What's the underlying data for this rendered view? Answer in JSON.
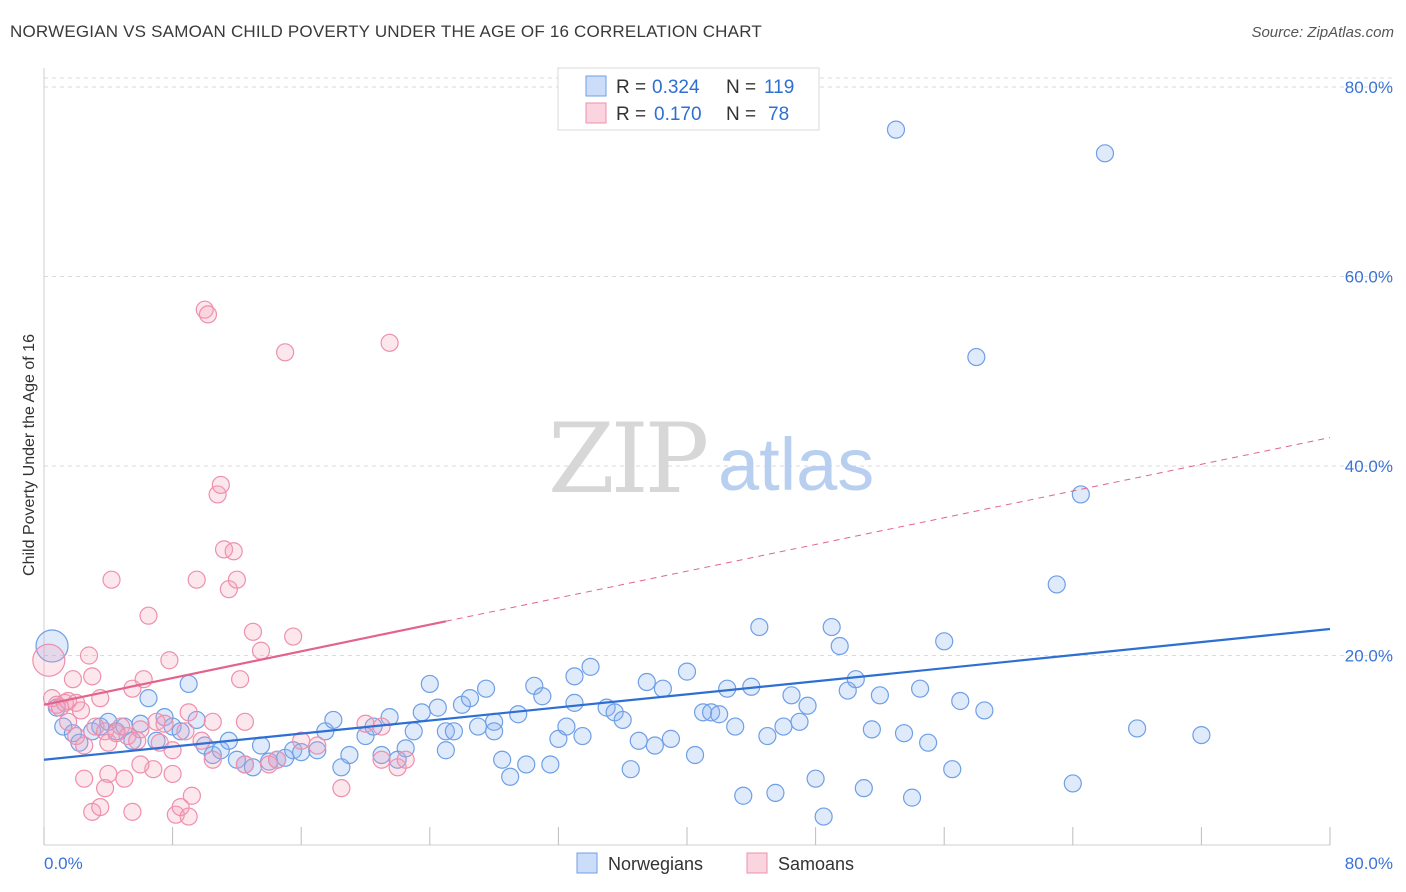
{
  "title": "NORWEGIAN VS SAMOAN CHILD POVERTY UNDER THE AGE OF 16 CORRELATION CHART",
  "source": "Source: ZipAtlas.com",
  "watermark": {
    "zip": "ZIP",
    "atlas": "atlas"
  },
  "colors": {
    "blue": "#6f9fe6",
    "blue_fill": "rgba(140,180,240,0.28)",
    "blue_line": "#2d6fd2",
    "pink": "#ef8fae",
    "pink_fill": "rgba(245,160,185,0.25)",
    "pink_line": "#e2648c",
    "grid": "#d9d9e0",
    "tick_text": "#3a73d6"
  },
  "chart_data": {
    "type": "scatter",
    "title": "NORWEGIAN VS SAMOAN CHILD POVERTY UNDER THE AGE OF 16 CORRELATION CHART",
    "xlabel": "",
    "ylabel": "Child Poverty Under the Age of 16",
    "xlim": [
      0,
      80
    ],
    "ylim": [
      0,
      80
    ],
    "x_tick_labels": [
      "0.0%",
      "80.0%"
    ],
    "y_ticks": [
      20,
      40,
      60,
      80
    ],
    "y_tick_labels": [
      "20.0%",
      "40.0%",
      "60.0%",
      "80.0%"
    ],
    "grid": true,
    "legend": {
      "placement": "top-center",
      "entries": [
        {
          "series": "Norwegians",
          "r_label": "R =",
          "r_value": "0.324",
          "n_label": "N =",
          "n_value": "119"
        },
        {
          "series": "Samoans",
          "r_label": "R =",
          "r_value": "0.170",
          "n_label": "N =",
          "n_value": "78"
        }
      ]
    },
    "series": [
      {
        "name": "Norwegians",
        "trend": {
          "x0": 0,
          "y0": 9.0,
          "x1": 80,
          "y1": 22.8,
          "dashed_from": null
        },
        "points": [
          [
            0.5,
            21.0
          ],
          [
            0.8,
            14.5
          ],
          [
            1.2,
            12.5
          ],
          [
            1.8,
            11.8
          ],
          [
            2.2,
            10.8
          ],
          [
            3.0,
            12.0
          ],
          [
            3.5,
            12.5
          ],
          [
            4.0,
            13.0
          ],
          [
            4.5,
            12.0
          ],
          [
            5.0,
            12.5
          ],
          [
            5.5,
            11.0
          ],
          [
            6.0,
            12.8
          ],
          [
            6.5,
            15.5
          ],
          [
            7.0,
            11.0
          ],
          [
            7.5,
            13.5
          ],
          [
            8.0,
            12.5
          ],
          [
            8.5,
            12.0
          ],
          [
            9.0,
            17.0
          ],
          [
            9.5,
            13.2
          ],
          [
            10.0,
            10.5
          ],
          [
            10.5,
            9.5
          ],
          [
            11.0,
            10.0
          ],
          [
            11.5,
            11.0
          ],
          [
            12.0,
            9.0
          ],
          [
            12.5,
            8.5
          ],
          [
            13.0,
            8.2
          ],
          [
            13.5,
            10.5
          ],
          [
            14.0,
            8.8
          ],
          [
            14.5,
            9.0
          ],
          [
            15.0,
            9.2
          ],
          [
            15.5,
            10.0
          ],
          [
            16.0,
            9.8
          ],
          [
            17.0,
            10.0
          ],
          [
            17.5,
            12.0
          ],
          [
            18.0,
            13.2
          ],
          [
            18.5,
            8.2
          ],
          [
            19.0,
            9.5
          ],
          [
            20.0,
            11.5
          ],
          [
            20.5,
            12.5
          ],
          [
            21.0,
            9.5
          ],
          [
            21.5,
            13.5
          ],
          [
            22.0,
            9.0
          ],
          [
            22.5,
            10.2
          ],
          [
            23.0,
            12.0
          ],
          [
            23.5,
            14.0
          ],
          [
            24.0,
            17.0
          ],
          [
            24.5,
            14.5
          ],
          [
            25.0,
            12.0
          ],
          [
            25.5,
            12.0
          ],
          [
            26.0,
            14.8
          ],
          [
            26.5,
            15.5
          ],
          [
            27.0,
            12.5
          ],
          [
            27.5,
            16.5
          ],
          [
            28.0,
            13.0
          ],
          [
            28.5,
            9.0
          ],
          [
            29.0,
            7.2
          ],
          [
            29.5,
            13.8
          ],
          [
            30.0,
            8.5
          ],
          [
            30.5,
            16.8
          ],
          [
            31.0,
            15.7
          ],
          [
            31.5,
            8.5
          ],
          [
            32.0,
            11.2
          ],
          [
            32.5,
            12.5
          ],
          [
            33.0,
            17.8
          ],
          [
            33.5,
            11.5
          ],
          [
            34.0,
            18.8
          ],
          [
            35.0,
            14.5
          ],
          [
            35.5,
            14.0
          ],
          [
            36.0,
            13.2
          ],
          [
            36.5,
            8.0
          ],
          [
            37.0,
            11.0
          ],
          [
            37.5,
            17.2
          ],
          [
            38.0,
            10.5
          ],
          [
            38.5,
            16.5
          ],
          [
            39.0,
            11.2
          ],
          [
            40.0,
            18.3
          ],
          [
            40.5,
            9.5
          ],
          [
            41.0,
            14.0
          ],
          [
            41.5,
            14.0
          ],
          [
            42.0,
            13.8
          ],
          [
            42.5,
            16.5
          ],
          [
            43.0,
            12.5
          ],
          [
            43.5,
            5.2
          ],
          [
            44.0,
            16.7
          ],
          [
            44.5,
            23.0
          ],
          [
            45.0,
            11.5
          ],
          [
            45.5,
            5.5
          ],
          [
            46.0,
            12.5
          ],
          [
            46.5,
            15.8
          ],
          [
            47.0,
            13.0
          ],
          [
            47.5,
            14.7
          ],
          [
            48.0,
            7.0
          ],
          [
            48.5,
            3.0
          ],
          [
            49.0,
            23.0
          ],
          [
            49.5,
            21.0
          ],
          [
            50.0,
            16.3
          ],
          [
            50.5,
            17.5
          ],
          [
            51.0,
            6.0
          ],
          [
            51.5,
            12.2
          ],
          [
            52.0,
            15.8
          ],
          [
            53.0,
            75.5
          ],
          [
            53.5,
            11.8
          ],
          [
            54.0,
            5.0
          ],
          [
            54.5,
            16.5
          ],
          [
            55.0,
            10.8
          ],
          [
            56.0,
            21.5
          ],
          [
            56.5,
            8.0
          ],
          [
            57.0,
            15.2
          ],
          [
            58.0,
            51.5
          ],
          [
            58.5,
            14.2
          ],
          [
            63.0,
            27.5
          ],
          [
            64.0,
            6.5
          ],
          [
            64.5,
            37.0
          ],
          [
            66.0,
            73.0
          ],
          [
            68.0,
            12.3
          ],
          [
            72.0,
            11.6
          ],
          [
            25.0,
            10.0
          ],
          [
            28.0,
            12.0
          ],
          [
            33.0,
            15.0
          ]
        ]
      },
      {
        "name": "Samoans",
        "trend": {
          "x0": 0,
          "y0": 14.8,
          "x1": 80,
          "y1": 43.0,
          "dashed_from": 25
        },
        "points": [
          [
            0.3,
            19.5
          ],
          [
            0.5,
            15.5
          ],
          [
            0.8,
            14.8
          ],
          [
            1.0,
            14.5
          ],
          [
            1.3,
            15.0
          ],
          [
            1.5,
            15.2
          ],
          [
            1.8,
            17.5
          ],
          [
            2.0,
            15.0
          ],
          [
            2.3,
            14.2
          ],
          [
            2.5,
            7.0
          ],
          [
            2.8,
            20.0
          ],
          [
            3.0,
            17.8
          ],
          [
            3.2,
            12.5
          ],
          [
            3.5,
            15.5
          ],
          [
            3.8,
            12.0
          ],
          [
            4.0,
            10.8
          ],
          [
            4.2,
            28.0
          ],
          [
            4.5,
            11.8
          ],
          [
            4.8,
            12.5
          ],
          [
            5.0,
            7.0
          ],
          [
            5.2,
            11.5
          ],
          [
            5.5,
            16.5
          ],
          [
            5.8,
            11.0
          ],
          [
            6.0,
            12.2
          ],
          [
            6.2,
            17.5
          ],
          [
            6.5,
            24.2
          ],
          [
            6.8,
            8.0
          ],
          [
            7.0,
            13.0
          ],
          [
            7.2,
            10.8
          ],
          [
            7.5,
            12.8
          ],
          [
            7.8,
            19.5
          ],
          [
            8.0,
            7.5
          ],
          [
            8.2,
            3.2
          ],
          [
            8.5,
            4.0
          ],
          [
            8.8,
            12.0
          ],
          [
            9.0,
            3.0
          ],
          [
            9.2,
            5.2
          ],
          [
            9.5,
            28.0
          ],
          [
            9.8,
            11.0
          ],
          [
            10.0,
            56.5
          ],
          [
            10.2,
            56.0
          ],
          [
            10.5,
            13.0
          ],
          [
            10.8,
            37.0
          ],
          [
            11.0,
            38.0
          ],
          [
            11.2,
            31.2
          ],
          [
            11.5,
            27.0
          ],
          [
            11.8,
            31.0
          ],
          [
            12.0,
            28.0
          ],
          [
            12.2,
            17.5
          ],
          [
            12.5,
            13.0
          ],
          [
            13.0,
            22.5
          ],
          [
            13.5,
            20.5
          ],
          [
            14.0,
            8.5
          ],
          [
            14.5,
            9.0
          ],
          [
            15.0,
            52.0
          ],
          [
            15.5,
            22.0
          ],
          [
            16.0,
            11.0
          ],
          [
            17.0,
            10.5
          ],
          [
            18.5,
            6.0
          ],
          [
            20.0,
            12.8
          ],
          [
            21.0,
            12.5
          ],
          [
            21.5,
            53.0
          ],
          [
            22.0,
            8.2
          ],
          [
            22.5,
            9.0
          ],
          [
            3.0,
            3.5
          ],
          [
            3.5,
            4.0
          ],
          [
            4.0,
            7.5
          ],
          [
            5.5,
            3.5
          ],
          [
            1.5,
            13.0
          ],
          [
            2.0,
            11.5
          ],
          [
            2.5,
            10.5
          ],
          [
            3.8,
            6.0
          ],
          [
            6.0,
            8.5
          ],
          [
            8.0,
            10.0
          ],
          [
            9.0,
            14.0
          ],
          [
            10.5,
            9.0
          ],
          [
            12.5,
            8.5
          ],
          [
            21.0,
            9.0
          ]
        ]
      }
    ]
  }
}
